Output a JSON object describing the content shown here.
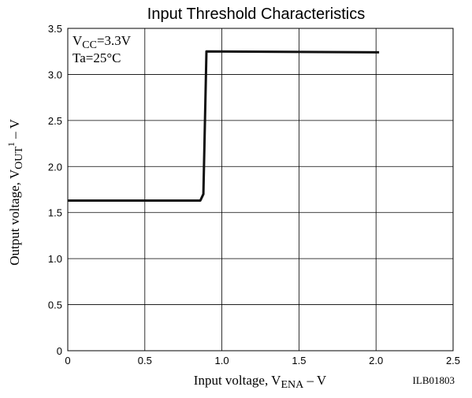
{
  "chart_data": {
    "type": "line",
    "title": "Input Threshold Characteristics",
    "xlabel": {
      "main": "Input voltage, V",
      "sub": "ENA",
      "suffix": " – V"
    },
    "ylabel": {
      "main": "Output voltage, V",
      "sub": "OUT",
      "sup": "1",
      "suffix": " – V"
    },
    "xlim": [
      0,
      2.5
    ],
    "ylim": [
      0,
      3.5
    ],
    "x_ticks": [
      0,
      0.5,
      1.0,
      1.5,
      2.0,
      2.5
    ],
    "x_tick_labels": [
      "0",
      "0.5",
      "1.0",
      "1.5",
      "2.0",
      "2.5"
    ],
    "y_ticks": [
      0,
      0.5,
      1.0,
      1.5,
      2.0,
      2.5,
      3.0,
      3.5
    ],
    "y_tick_labels": [
      "0",
      "0.5",
      "1.0",
      "1.5",
      "2.0",
      "2.5",
      "3.0",
      "3.5"
    ],
    "grid": true,
    "annotations": [
      {
        "main": "V",
        "sub": "CC",
        "suffix": "=3.3V"
      },
      {
        "main": "Ta=25°C"
      }
    ],
    "figure_code": "ILB01803",
    "series": [
      {
        "x": [
          0.0,
          0.86,
          0.88,
          0.9,
          2.02
        ],
        "y": [
          1.63,
          1.63,
          1.7,
          3.25,
          3.24
        ]
      }
    ],
    "line_color": "#111111",
    "grid_color": "#000000"
  }
}
